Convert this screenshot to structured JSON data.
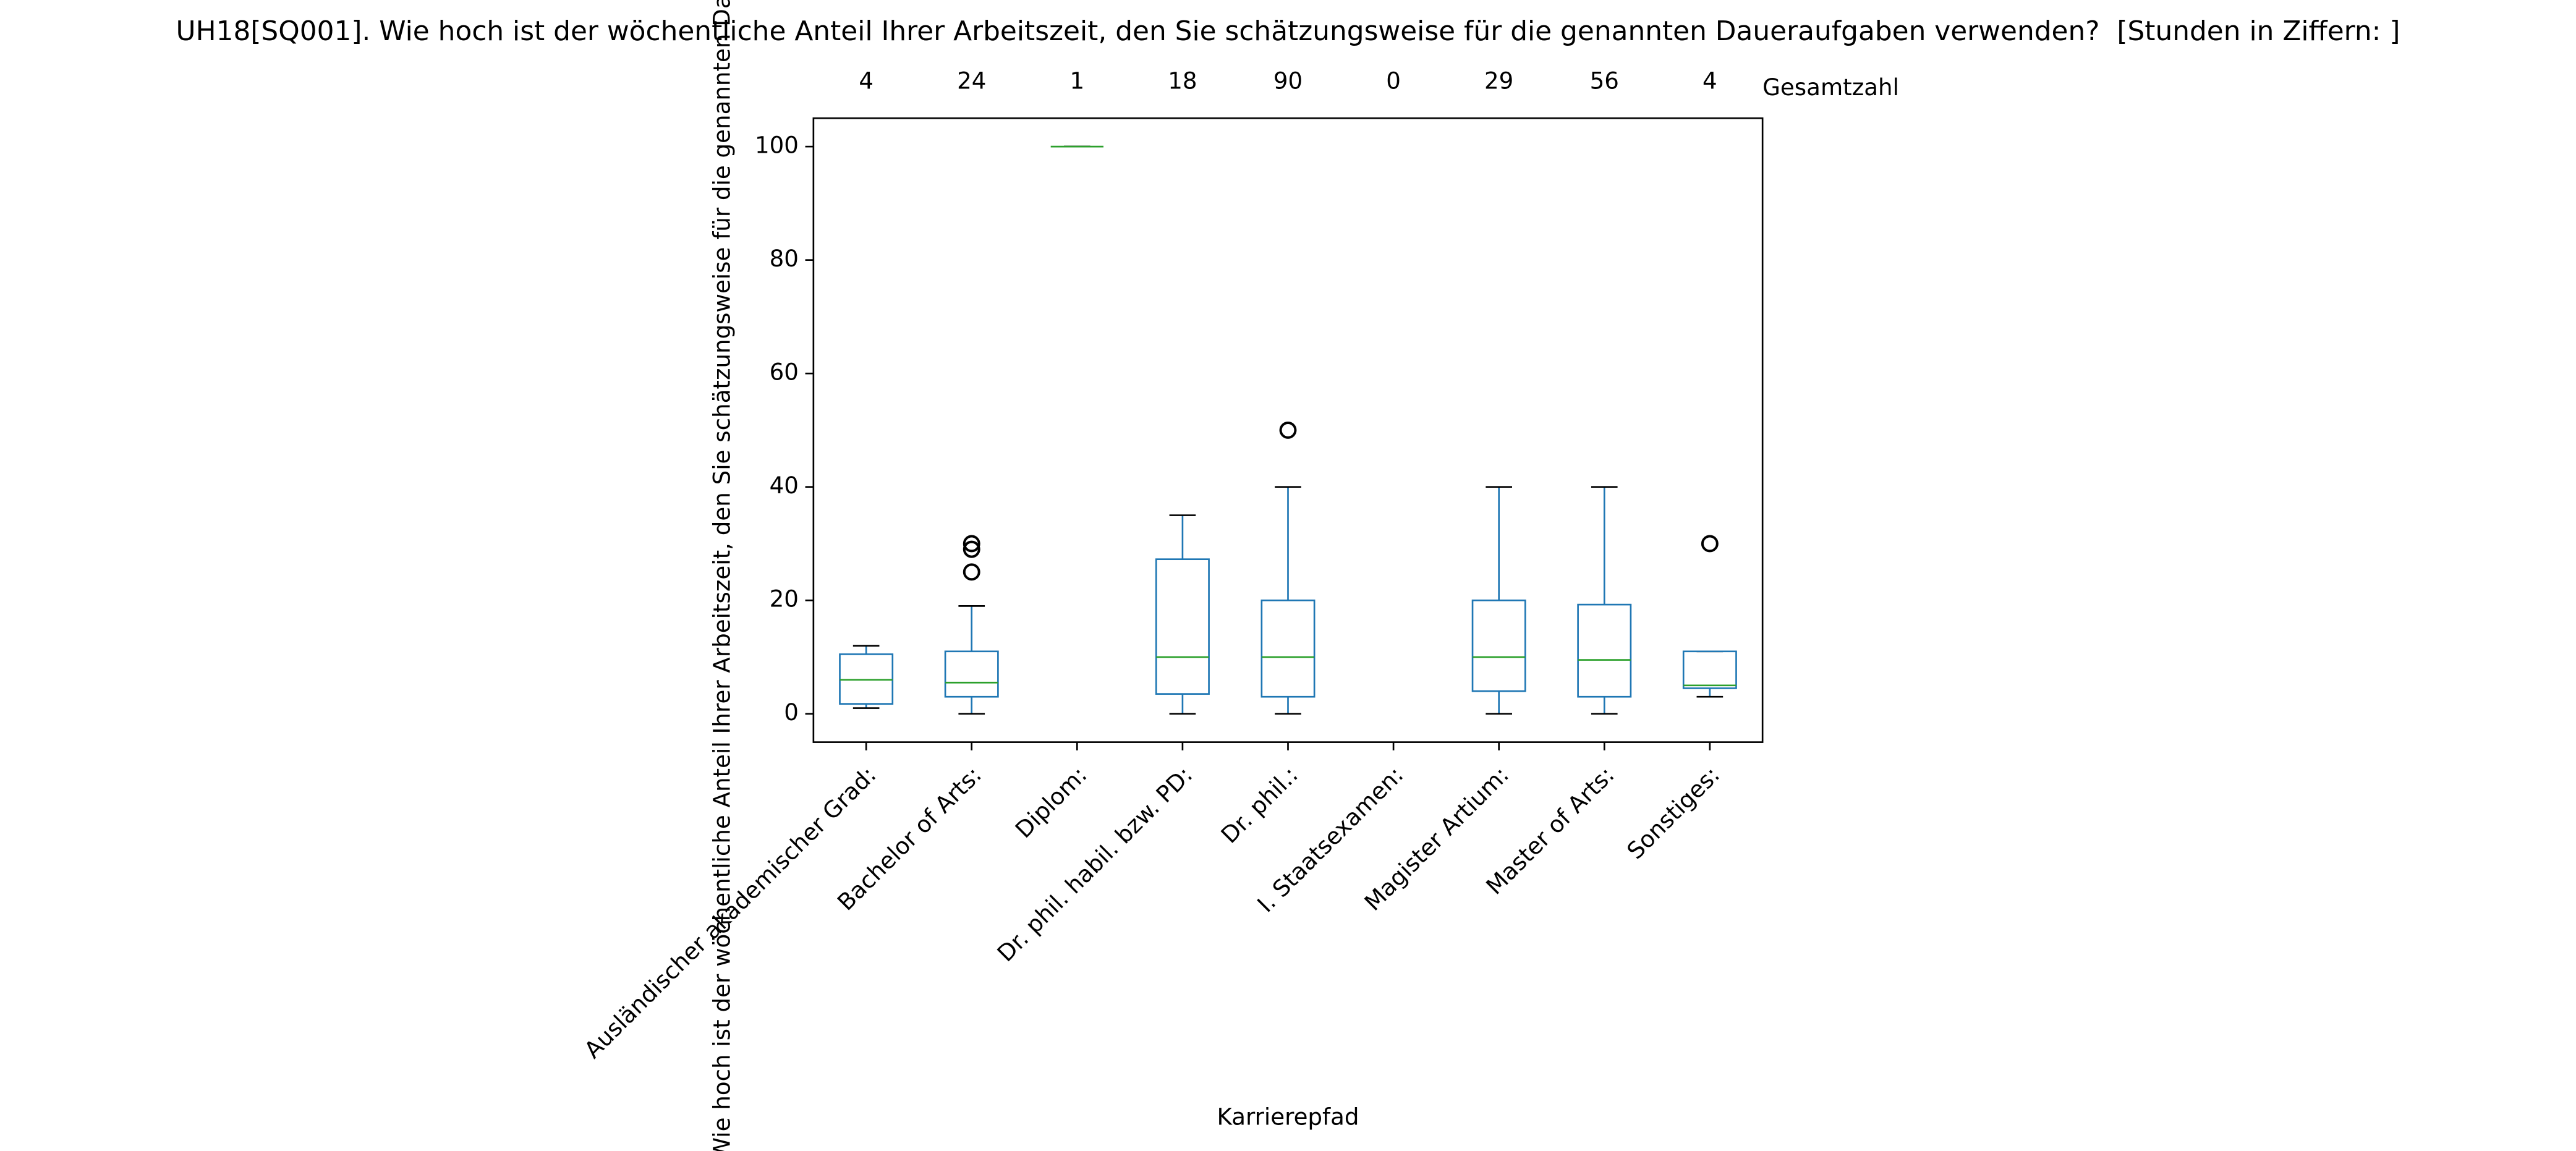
{
  "chart_data": {
    "type": "box",
    "title": "UH18[SQ001]. Wie hoch ist der wöchentliche Anteil Ihrer Arbeitszeit, den Sie schätzungsweise für die genannten Daueraufgaben verwenden?  [Stunden in Ziffern: ]",
    "x_label": "Karrierepfad",
    "y_label": "Wie hoch ist der wöchentliche Anteil Ihrer Arbeitszeit, den Sie schätzungsweise für die genannten Daueraufgaben verwenden?",
    "count_label": "Gesamtzahl",
    "categories": [
      "Ausländischer akademischer Grad:",
      "Bachelor of Arts:",
      "Diplom:",
      "Dr. phil. habil. bzw. PD:",
      "Dr. phil.:",
      "I. Staatsexamen:",
      "Magister Artium:",
      "Master of Arts:",
      "Sonstiges:"
    ],
    "counts": [
      4,
      24,
      1,
      18,
      90,
      0,
      29,
      56,
      4
    ],
    "boxes": [
      {
        "whisker_low": 1,
        "q1": 1.75,
        "median": 6,
        "q3": 10.5,
        "whisker_high": 12,
        "outliers": []
      },
      {
        "whisker_low": 0,
        "q1": 3,
        "median": 5.5,
        "q3": 11,
        "whisker_high": 19,
        "outliers": [
          25,
          29,
          30
        ]
      },
      {
        "whisker_low": 100,
        "q1": 100,
        "median": 100,
        "q3": 100,
        "whisker_high": 100,
        "outliers": []
      },
      {
        "whisker_low": 0,
        "q1": 3.5,
        "median": 10,
        "q3": 27.25,
        "whisker_high": 35,
        "outliers": []
      },
      {
        "whisker_low": 0,
        "q1": 3,
        "median": 10,
        "q3": 20,
        "whisker_high": 40,
        "outliers": [
          50
        ]
      },
      null,
      {
        "whisker_low": 0,
        "q1": 4,
        "median": 10,
        "q3": 20,
        "whisker_high": 40,
        "outliers": []
      },
      {
        "whisker_low": 0,
        "q1": 3,
        "median": 9.5,
        "q3": 19.25,
        "whisker_high": 40,
        "outliers": []
      },
      {
        "whisker_low": 3,
        "q1": 4.5,
        "median": 5,
        "q3": 11,
        "whisker_high": 11,
        "outliers": [
          30
        ]
      }
    ],
    "box_color": "#1f77b4",
    "median_color": "#2ca02c",
    "cap_color": "#000000",
    "ylim": [
      -5,
      105
    ],
    "yticks": [
      0,
      20,
      40,
      60,
      80,
      100
    ]
  }
}
